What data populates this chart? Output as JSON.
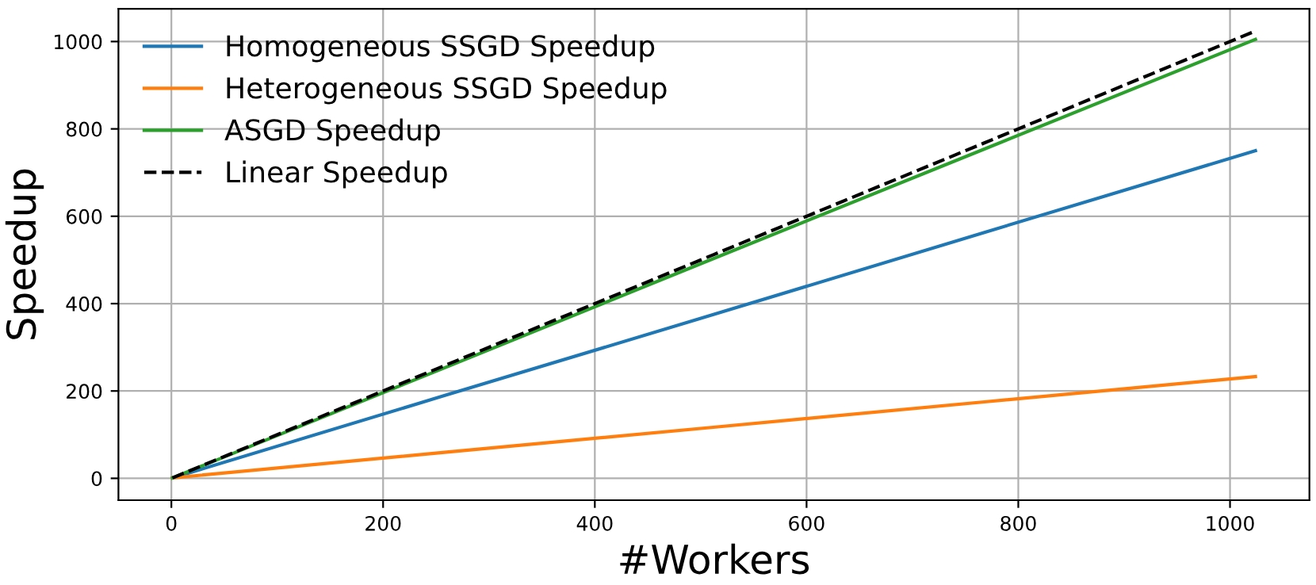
{
  "chart_data": {
    "type": "line",
    "xlabel": "#Workers",
    "ylabel": "Speedup",
    "x": [
      1,
      256,
      512,
      768,
      1024
    ],
    "series": [
      {
        "name": "Homogeneous SSGD Speedup",
        "color": "#1f77b4",
        "values": [
          1,
          188,
          375,
          563,
          750
        ]
      },
      {
        "name": "Heterogeneous SSGD Speedup",
        "color": "#ff7f0e",
        "values": [
          1,
          59,
          117,
          175,
          233
        ]
      },
      {
        "name": "ASGD Speedup",
        "color": "#2ca02c",
        "values": [
          1,
          251,
          503,
          754,
          1005
        ]
      },
      {
        "name": "Linear Speedup",
        "color": "#000000",
        "values": [
          1,
          256,
          512,
          768,
          1024
        ],
        "line_style": "dashed"
      }
    ],
    "xlim": [
      -50,
      1075
    ],
    "ylim": [
      -50,
      1075
    ],
    "xticks": [
      0,
      200,
      400,
      600,
      800,
      1000
    ],
    "yticks": [
      0,
      200,
      400,
      600,
      800,
      1000
    ],
    "grid": true,
    "legend": "top left",
    "marker": "none",
    "line_style": "solid"
  }
}
